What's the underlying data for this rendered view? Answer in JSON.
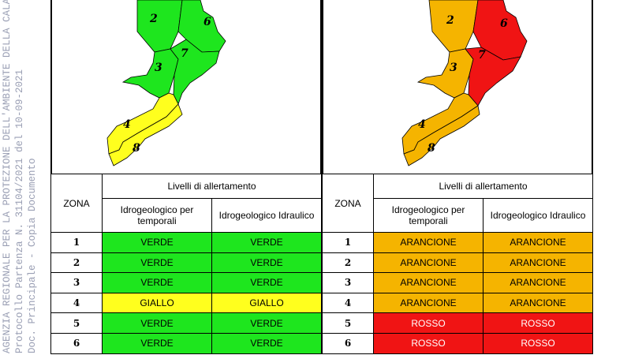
{
  "stamp": {
    "line1": "AGENZIA REGIONALE PER LA PROTEZIONE DELL'AMBIENTE DELLA CALABRIA",
    "line2": "Protocollo Partenza N. 31104/2021 del 10-09-2021",
    "line3": "Doc. Principale - Copia Documento"
  },
  "colors": {
    "verde": "#1ee61e",
    "giallo": "#ffff1e",
    "arancione": "#f5b400",
    "rosso": "#f01414"
  },
  "zone_labels": [
    "2",
    "6",
    "3",
    "7",
    "4",
    "8"
  ],
  "panels": [
    {
      "header_zone": "ZONA",
      "header_levels": "Livelli di allertamento",
      "header_col1": "Idrogeologico per temporali",
      "header_col2": "Idrogeologico Idraulico",
      "map_colors": {
        "z2": "#1ee61e",
        "z6": "#1ee61e",
        "z3": "#1ee61e",
        "z7": "#1ee61e",
        "z4": "#ffff1e",
        "z8": "#ffff1e"
      },
      "rows": [
        {
          "zone": "1",
          "col1": "VERDE",
          "col2": "VERDE",
          "color1": "#1ee61e",
          "color2": "#1ee61e"
        },
        {
          "zone": "2",
          "col1": "VERDE",
          "col2": "VERDE",
          "color1": "#1ee61e",
          "color2": "#1ee61e"
        },
        {
          "zone": "3",
          "col1": "VERDE",
          "col2": "VERDE",
          "color1": "#1ee61e",
          "color2": "#1ee61e"
        },
        {
          "zone": "4",
          "col1": "GIALLO",
          "col2": "GIALLO",
          "color1": "#ffff1e",
          "color2": "#ffff1e"
        },
        {
          "zone": "5",
          "col1": "VERDE",
          "col2": "VERDE",
          "color1": "#1ee61e",
          "color2": "#1ee61e"
        },
        {
          "zone": "6",
          "col1": "VERDE",
          "col2": "VERDE",
          "color1": "#1ee61e",
          "color2": "#1ee61e"
        }
      ]
    },
    {
      "header_zone": "ZONA",
      "header_levels": "Livelli di allertamento",
      "header_col1": "Idrogeologico per temporali",
      "header_col2": "Idrogeologico Idraulico",
      "map_colors": {
        "z2": "#f5b400",
        "z6": "#f01414",
        "z3": "#f5b400",
        "z7": "#f01414",
        "z4": "#f5b400",
        "z8": "#f5b400"
      },
      "rows": [
        {
          "zone": "1",
          "col1": "ARANCIONE",
          "col2": "ARANCIONE",
          "color1": "#f5b400",
          "color2": "#f5b400"
        },
        {
          "zone": "2",
          "col1": "ARANCIONE",
          "col2": "ARANCIONE",
          "color1": "#f5b400",
          "color2": "#f5b400"
        },
        {
          "zone": "3",
          "col1": "ARANCIONE",
          "col2": "ARANCIONE",
          "color1": "#f5b400",
          "color2": "#f5b400"
        },
        {
          "zone": "4",
          "col1": "ARANCIONE",
          "col2": "ARANCIONE",
          "color1": "#f5b400",
          "color2": "#f5b400"
        },
        {
          "zone": "5",
          "col1": "ROSSO",
          "col2": "ROSSO",
          "color1": "#f01414",
          "color2": "#f01414"
        },
        {
          "zone": "6",
          "col1": "ROSSO",
          "col2": "ROSSO",
          "color1": "#f01414",
          "color2": "#f01414"
        }
      ]
    }
  ]
}
